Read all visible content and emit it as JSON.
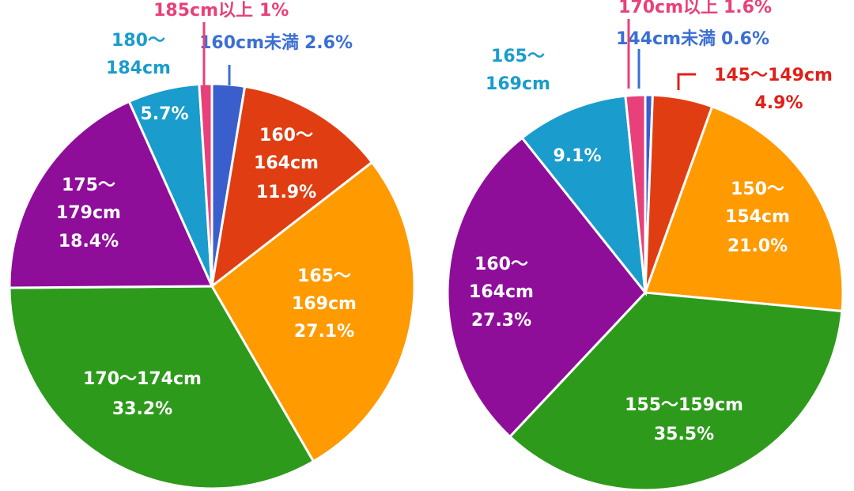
{
  "chart_data": [
    {
      "type": "pie",
      "categories": [
        "160cm未満",
        "160～164cm",
        "165～169cm",
        "170～174cm",
        "175～179cm",
        "180～184cm",
        "185cm以上"
      ],
      "values": [
        2.6,
        11.9,
        27.1,
        33.2,
        18.4,
        5.7,
        1
      ],
      "value_labels": [
        "2.6%",
        "11.9%",
        "27.1%",
        "33.2%",
        "18.4%",
        "5.7%",
        "1%"
      ],
      "colors": [
        "#3a5fcd",
        "#e03e12",
        "#ff9a00",
        "#2e9a1c",
        "#8e0e9a",
        "#1a9ccc",
        "#e8407a"
      ]
    },
    {
      "type": "pie",
      "categories": [
        "144cm未満",
        "145～149cm",
        "150～154cm",
        "155～159cm",
        "160～164cm",
        "165～169cm",
        "170cm以上"
      ],
      "values": [
        0.6,
        4.9,
        21.0,
        35.5,
        27.3,
        9.1,
        1.6
      ],
      "value_labels": [
        "0.6%",
        "4.9%",
        "21.0%",
        "35.5%",
        "27.3%",
        "9.1%",
        "1.6%"
      ],
      "colors": [
        "#3a5fcd",
        "#e03e12",
        "#ff9a00",
        "#2e9a1c",
        "#8e0e9a",
        "#1a9ccc",
        "#e8407a"
      ]
    }
  ]
}
